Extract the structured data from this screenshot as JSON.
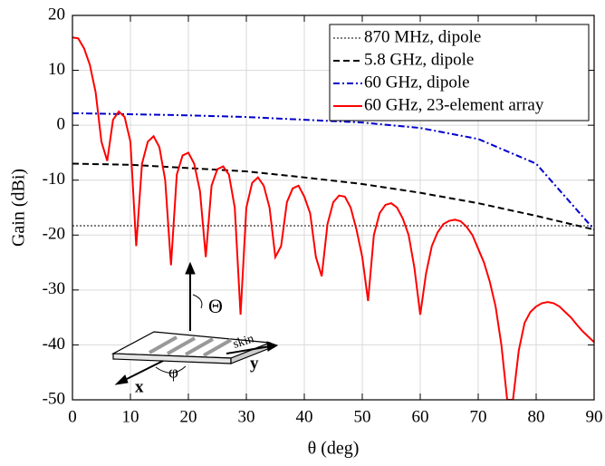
{
  "chart_data": {
    "type": "line",
    "xlabel": "θ (deg)",
    "ylabel": "Gain (dBi)",
    "xlim": [
      0,
      90
    ],
    "xticks": [
      0,
      10,
      20,
      30,
      40,
      50,
      60,
      70,
      80,
      90
    ],
    "ylim": [
      -50,
      20
    ],
    "yticks": [
      -50,
      -40,
      -30,
      -20,
      -10,
      0,
      10,
      20
    ],
    "grid": true,
    "legend": "upper right",
    "annotations": [
      "Θ",
      "φ",
      "x",
      "y",
      "skin"
    ],
    "series": [
      {
        "name": "870 MHz, dipole",
        "color": "#7f7f7f",
        "linestyle": "dotted",
        "x": [
          0,
          90
        ],
        "values": [
          -18.3,
          -18.3
        ]
      },
      {
        "name": "5.8 GHz, dipole",
        "color": "#000000",
        "linestyle": "dashed",
        "x": [
          0,
          10,
          20,
          30,
          40,
          50,
          60,
          70,
          80,
          90
        ],
        "values": [
          -7,
          -7.2,
          -7.8,
          -8.4,
          -9.5,
          -10.7,
          -12.3,
          -14.2,
          -16.5,
          -19
        ]
      },
      {
        "name": "60 GHz, dipole",
        "color": "#0000cc",
        "linestyle": "dashdot",
        "x": [
          0,
          10,
          20,
          30,
          40,
          50,
          60,
          70,
          80,
          90
        ],
        "values": [
          2.2,
          2,
          1.8,
          1.5,
          1,
          0.5,
          -0.5,
          -2.5,
          -7,
          -19
        ]
      },
      {
        "name": "60 GHz, 23-element array",
        "color": "#ff0000",
        "linestyle": "solid",
        "x": [
          0,
          1,
          2,
          3,
          4,
          5,
          6,
          7,
          8,
          9,
          10,
          11,
          12,
          13,
          14,
          15,
          16,
          17,
          18,
          19,
          20,
          21,
          22,
          23,
          24,
          25,
          26,
          27,
          28,
          29,
          30,
          31,
          32,
          33,
          34,
          35,
          36,
          37,
          38,
          39,
          40,
          41,
          42,
          43,
          44,
          45,
          46,
          47,
          48,
          49,
          50,
          51,
          52,
          53,
          54,
          55,
          56,
          57,
          58,
          59,
          60,
          61,
          62,
          63,
          64,
          65,
          66,
          67,
          68,
          69,
          70,
          71,
          72,
          73,
          74,
          75,
          76,
          77,
          78,
          79,
          80,
          81,
          82,
          83,
          84,
          85,
          86,
          87,
          88,
          89,
          90
        ],
        "values": [
          16,
          15.8,
          14,
          11,
          6,
          -3,
          -6.5,
          1,
          2.5,
          1.5,
          -3,
          -22,
          -7,
          -3,
          -2,
          -4,
          -10,
          -25.5,
          -9,
          -5.5,
          -5,
          -7,
          -12,
          -24,
          -11,
          -8,
          -7.5,
          -9,
          -15,
          -34.5,
          -15,
          -10.5,
          -9.5,
          -11,
          -15,
          -24,
          -22,
          -14,
          -11.5,
          -11,
          -13,
          -16,
          -24,
          -27.5,
          -18,
          -14,
          -12.8,
          -13,
          -15,
          -19,
          -24,
          -32,
          -20,
          -16,
          -14.5,
          -14.2,
          -15,
          -17,
          -20,
          -26,
          -34.5,
          -27,
          -22,
          -19.5,
          -18,
          -17.4,
          -17.2,
          -17.5,
          -18.5,
          -20,
          -22.5,
          -25,
          -28.5,
          -33,
          -40,
          -50,
          -50,
          -41,
          -36,
          -34,
          -33,
          -32.4,
          -32.2,
          -32.4,
          -33,
          -34,
          -35,
          -36.3,
          -37.5,
          -38.5,
          -39.5
        ]
      }
    ]
  }
}
